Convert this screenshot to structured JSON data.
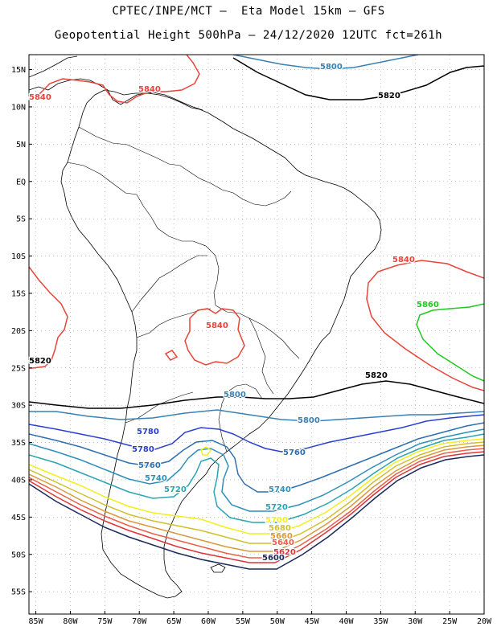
{
  "header": {
    "line1": "CPTEC/INPE/MCT –  Eta Model 15km – GFS",
    "line2": "Geopotential Height 500hPa – 24/12/2020 12UTC fct=261h"
  },
  "axes": {
    "lat_labels": [
      "15N",
      "10N",
      "5N",
      "EQ",
      "5S",
      "10S",
      "15S",
      "20S",
      "25S",
      "30S",
      "35S",
      "40S",
      "45S",
      "50S",
      "55S"
    ],
    "lon_labels": [
      "85W",
      "80W",
      "75W",
      "70W",
      "65W",
      "60W",
      "55W",
      "50W",
      "45W",
      "40W",
      "35W",
      "30W",
      "25W",
      "20W"
    ],
    "lat_range": [
      17,
      -58
    ],
    "lon_range": [
      -86,
      -20
    ]
  },
  "contour_colors": {
    "5600": "#1a2a5a",
    "5620": "#e0333a",
    "5640": "#e8604a",
    "5660": "#d89a3a",
    "5680": "#cfc030",
    "5700": "#f2ef1e",
    "5720": "#2aa4b4",
    "5740": "#2e8fb8",
    "5760": "#2e6fb0",
    "5780": "#2a3fd2",
    "5800": "#3a80b0",
    "5820": "#000000",
    "5840": "#e8443a",
    "5860": "#1fc81f"
  },
  "contour_labels": [
    {
      "text": "5800",
      "color": "5800"
    },
    {
      "text": "5820",
      "color": "5820"
    },
    {
      "text": "5840",
      "color": "5840"
    },
    {
      "text": "5840",
      "color": "5840"
    },
    {
      "text": "5840",
      "color": "5840"
    },
    {
      "text": "5840",
      "color": "5840"
    },
    {
      "text": "5860",
      "color": "5860"
    },
    {
      "text": "5820",
      "color": "5820"
    },
    {
      "text": "5820",
      "color": "5820"
    },
    {
      "text": "5800",
      "color": "5800"
    },
    {
      "text": "5800",
      "color": "5800"
    },
    {
      "text": "5780",
      "color": "5780"
    },
    {
      "text": "5780",
      "color": "5780"
    },
    {
      "text": "5760",
      "color": "5760"
    },
    {
      "text": "5760",
      "color": "5760"
    },
    {
      "text": "5740",
      "color": "5740"
    },
    {
      "text": "5740",
      "color": "5740"
    },
    {
      "text": "5720",
      "color": "5720"
    },
    {
      "text": "5720",
      "color": "5720"
    },
    {
      "text": "5700",
      "color": "5700"
    },
    {
      "text": "5680",
      "color": "5680"
    },
    {
      "text": "5660",
      "color": "5660"
    },
    {
      "text": "5640",
      "color": "5640"
    },
    {
      "text": "5620",
      "color": "5620"
    },
    {
      "text": "5600",
      "color": "5600"
    }
  ]
}
